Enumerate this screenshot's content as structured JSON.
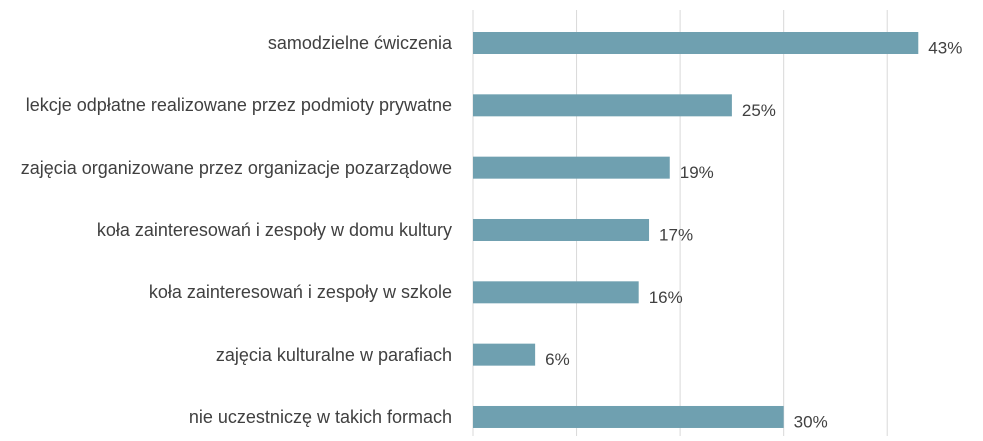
{
  "chart_data": {
    "type": "barh",
    "categories": [
      "samodzielne ćwiczenia",
      "lekcje odpłatne realizowane przez podmioty prywatne",
      "zajęcia organizowane przez organizacje pozarządowe",
      "koła zainteresowań i zespoły w domu kultury",
      "koła zainteresowań i zespoły w szkole",
      "zajęcia kulturalne w parafiach",
      "nie uczestniczę w takich formach"
    ],
    "values": [
      43,
      25,
      19,
      17,
      16,
      6,
      30
    ],
    "value_labels": [
      "43%",
      "25%",
      "19%",
      "17%",
      "16%",
      "6%",
      "30%"
    ],
    "color": "#6fa0b0",
    "xlim": [
      0,
      45
    ],
    "xticks": [
      0,
      10,
      20,
      30,
      40
    ],
    "grid": true
  }
}
